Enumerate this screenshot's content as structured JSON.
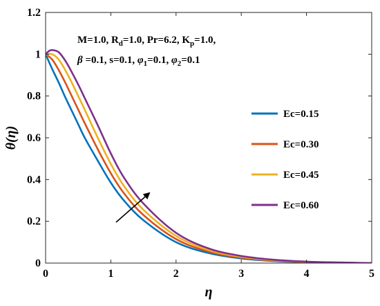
{
  "chart_data": {
    "type": "line",
    "title": "",
    "xlabel": "η",
    "ylabel": "θ(η)",
    "xlim": [
      0,
      5
    ],
    "ylim": [
      0,
      1.2
    ],
    "xticks": [
      "0",
      "1",
      "2",
      "3",
      "4",
      "5"
    ],
    "yticks": [
      "0",
      "0.2",
      "0.4",
      "0.6",
      "0.8",
      "1",
      "1.2"
    ],
    "grid": false,
    "legend_position": "right",
    "annotation_lines": [
      "M=1.0, Rd=1.0, Pr=6.2, Kp=1.0,",
      "β=0.1, s=0.1, φ1=0.1, φ2=0.1"
    ],
    "arrow_direction": "increasing Ec",
    "series": [
      {
        "name": "Ec=0.15",
        "color": "#0072BD",
        "x": [
          0,
          0.1,
          0.2,
          0.3,
          0.4,
          0.5,
          0.6,
          0.8,
          1.0,
          1.2,
          1.5,
          2.0,
          2.5,
          3.0,
          3.5,
          4.0,
          4.5,
          5.0
        ],
        "y": [
          1.0,
          0.93,
          0.865,
          0.795,
          0.73,
          0.665,
          0.6,
          0.49,
          0.385,
          0.3,
          0.205,
          0.1,
          0.048,
          0.022,
          0.01,
          0.004,
          0.002,
          0.0
        ]
      },
      {
        "name": "Ec=0.30",
        "color": "#D95319",
        "x": [
          0,
          0.1,
          0.2,
          0.3,
          0.4,
          0.5,
          0.6,
          0.8,
          1.0,
          1.2,
          1.5,
          2.0,
          2.5,
          3.0,
          3.5,
          4.0,
          4.5,
          5.0
        ],
        "y": [
          1.0,
          0.975,
          0.925,
          0.865,
          0.8,
          0.735,
          0.67,
          0.545,
          0.43,
          0.335,
          0.23,
          0.115,
          0.055,
          0.026,
          0.012,
          0.005,
          0.002,
          0.0
        ]
      },
      {
        "name": "Ec=0.45",
        "color": "#EDB120",
        "x": [
          0,
          0.1,
          0.2,
          0.3,
          0.4,
          0.5,
          0.6,
          0.8,
          1.0,
          1.2,
          1.5,
          2.0,
          2.5,
          3.0,
          3.5,
          4.0,
          4.5,
          5.0
        ],
        "y": [
          1.0,
          1.0,
          0.975,
          0.925,
          0.865,
          0.8,
          0.735,
          0.6,
          0.475,
          0.37,
          0.255,
          0.13,
          0.062,
          0.03,
          0.014,
          0.006,
          0.002,
          0.0
        ]
      },
      {
        "name": "Ec=0.60",
        "color": "#7E2F8E",
        "x": [
          0,
          0.05,
          0.1,
          0.2,
          0.3,
          0.4,
          0.5,
          0.6,
          0.8,
          1.0,
          1.2,
          1.5,
          2.0,
          2.5,
          3.0,
          3.5,
          4.0,
          4.5,
          5.0
        ],
        "y": [
          1.0,
          1.015,
          1.02,
          1.01,
          0.97,
          0.915,
          0.855,
          0.79,
          0.66,
          0.525,
          0.41,
          0.285,
          0.145,
          0.07,
          0.034,
          0.016,
          0.007,
          0.003,
          0.0
        ]
      }
    ]
  }
}
